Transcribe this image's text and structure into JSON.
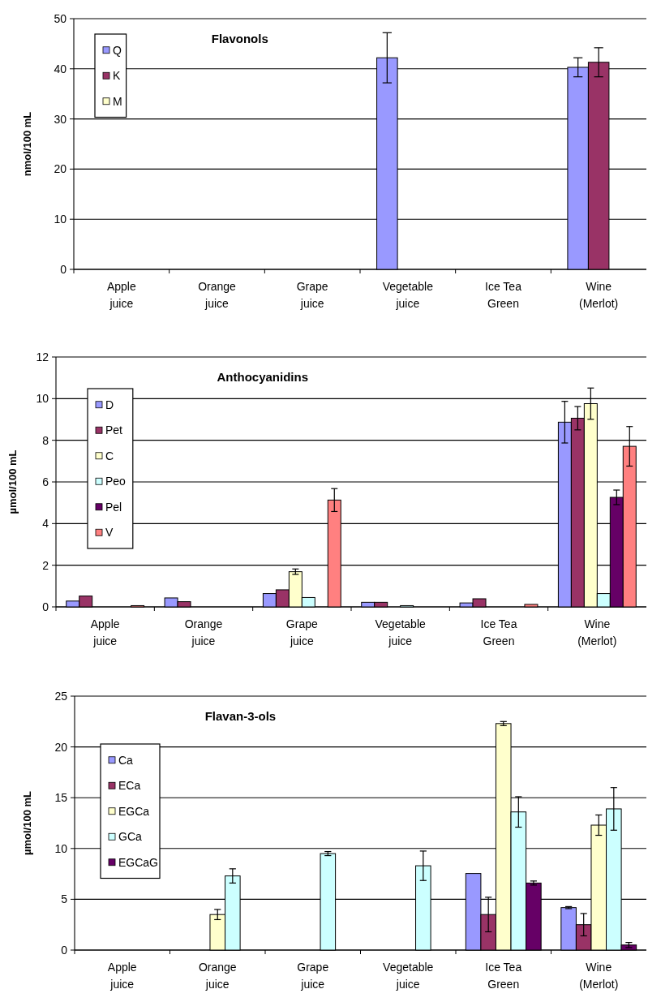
{
  "chart_data": [
    {
      "type": "bar",
      "title": "Flavonols",
      "ylabel": "nmol/100 mL",
      "categories": [
        "Apple juice",
        "Orange juice",
        "Grape juice",
        "Vegetable juice",
        "Ice Tea Green",
        "Wine (Merlot)"
      ],
      "series": [
        {
          "name": "Q",
          "color": "#9999ff",
          "values": [
            null,
            null,
            null,
            42.2,
            null,
            40.3
          ],
          "errors": [
            null,
            null,
            null,
            5.0,
            null,
            1.9
          ]
        },
        {
          "name": "K",
          "color": "#993366",
          "values": [
            null,
            null,
            null,
            null,
            null,
            41.3
          ],
          "errors": [
            null,
            null,
            null,
            null,
            null,
            2.9
          ]
        },
        {
          "name": "M",
          "color": "#ffffcc",
          "values": [
            null,
            null,
            null,
            null,
            null,
            null
          ]
        }
      ],
      "ylim": [
        0,
        50
      ],
      "yticks": [
        0,
        10,
        20,
        30,
        40,
        50
      ],
      "grid": "y",
      "legend": "top left"
    },
    {
      "type": "bar",
      "title": "Anthocyanidins",
      "ylabel": "µmol/100 mL",
      "categories": [
        "Apple juice",
        "Orange juice",
        "Grape juice",
        "Vegetable juice",
        "Ice Tea Green",
        "Wine (Merlot)"
      ],
      "series": [
        {
          "name": "D",
          "color": "#9999ff",
          "values": [
            0.28,
            0.43,
            0.64,
            0.22,
            0.19,
            8.87
          ],
          "errors": [
            null,
            null,
            null,
            null,
            null,
            1.0
          ]
        },
        {
          "name": "Pet",
          "color": "#993366",
          "values": [
            0.52,
            0.25,
            0.82,
            0.22,
            0.39,
            9.06
          ],
          "errors": [
            null,
            null,
            null,
            null,
            null,
            0.56
          ]
        },
        {
          "name": "C",
          "color": "#ffffcc",
          "values": [
            null,
            null,
            1.69,
            null,
            null,
            9.76
          ],
          "errors": [
            null,
            null,
            0.13,
            null,
            null,
            0.75
          ]
        },
        {
          "name": "Peo",
          "color": "#ccffff",
          "values": [
            null,
            null,
            0.45,
            0.06,
            null,
            0.64
          ]
        },
        {
          "name": "Pel",
          "color": "#660066",
          "values": [
            null,
            null,
            null,
            null,
            null,
            5.26
          ],
          "errors": [
            null,
            null,
            null,
            null,
            null,
            0.35
          ]
        },
        {
          "name": "V",
          "color": "#ff8080",
          "values": [
            0.06,
            null,
            5.13,
            null,
            0.12,
            7.71
          ],
          "errors": [
            null,
            null,
            0.55,
            null,
            null,
            0.95
          ]
        }
      ],
      "ylim": [
        0,
        12
      ],
      "yticks": [
        0,
        2,
        4,
        6,
        8,
        10,
        12
      ],
      "grid": "y",
      "legend": "top left"
    },
    {
      "type": "bar",
      "title": "Flavan-3-ols",
      "ylabel": "µmol/100 mL",
      "categories": [
        "Apple juice",
        "Orange juice",
        "Grape juice",
        "Vegetable juice",
        "Ice Tea Green",
        "Wine (Merlot)"
      ],
      "series": [
        {
          "name": "Ca",
          "color": "#9999ff",
          "values": [
            null,
            null,
            null,
            null,
            7.54,
            4.18
          ],
          "errors": [
            null,
            null,
            null,
            null,
            null,
            0.1
          ]
        },
        {
          "name": "ECa",
          "color": "#993366",
          "values": [
            null,
            null,
            null,
            null,
            3.5,
            2.5
          ],
          "errors": [
            null,
            null,
            null,
            null,
            1.7,
            1.1
          ]
        },
        {
          "name": "EGCa",
          "color": "#ffffcc",
          "values": [
            null,
            3.5,
            null,
            null,
            22.3,
            12.3
          ],
          "errors": [
            null,
            0.5,
            null,
            null,
            0.2,
            1.0
          ]
        },
        {
          "name": "GCa",
          "color": "#ccffff",
          "values": [
            null,
            7.3,
            9.5,
            8.3,
            13.6,
            13.9
          ],
          "errors": [
            null,
            0.7,
            0.2,
            1.45,
            1.5,
            2.1
          ]
        },
        {
          "name": "EGCaG",
          "color": "#660066",
          "values": [
            null,
            null,
            null,
            null,
            6.6,
            0.5
          ],
          "errors": [
            null,
            null,
            null,
            null,
            0.2,
            0.25
          ]
        }
      ],
      "ylim": [
        0,
        25
      ],
      "yticks": [
        0,
        5,
        10,
        15,
        20,
        25
      ],
      "grid": "y",
      "legend": "top left"
    }
  ]
}
